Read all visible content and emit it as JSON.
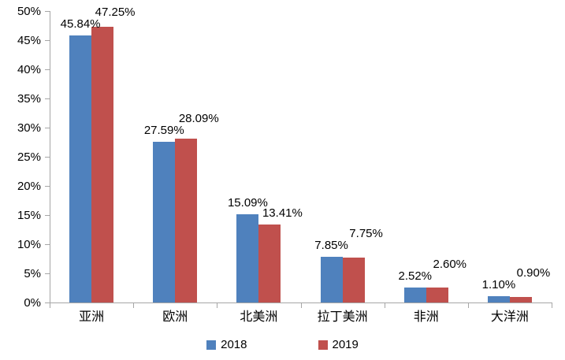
{
  "chart_data": {
    "type": "bar",
    "title": "",
    "xlabel": "",
    "ylabel": "",
    "categories": [
      "亚洲",
      "欧洲",
      "北美洲",
      "拉丁美洲",
      "非洲",
      "大洋洲"
    ],
    "series": [
      {
        "name": "2018",
        "color": "#4F81BD",
        "values": [
          45.84,
          27.59,
          15.09,
          7.85,
          2.52,
          1.1
        ],
        "labels": [
          "45.84%",
          "27.59%",
          "15.09%",
          "7.85%",
          "2.52%",
          "1.10%"
        ]
      },
      {
        "name": "2019",
        "color": "#C0504D",
        "values": [
          47.25,
          28.09,
          13.41,
          7.75,
          2.6,
          0.9
        ],
        "labels": [
          "47.25%",
          "28.09%",
          "13.41%",
          "7.75%",
          "2.60%",
          "0.90%"
        ]
      }
    ],
    "ylim": [
      0,
      50
    ],
    "ytick_step": 5,
    "ytick_labels": [
      "0%",
      "5%",
      "10%",
      "15%",
      "20%",
      "25%",
      "30%",
      "35%",
      "40%",
      "45%",
      "50%"
    ],
    "grid": false,
    "legend_position": "bottom",
    "axis_color": "#A6A6A6",
    "text_color": "#000000"
  }
}
